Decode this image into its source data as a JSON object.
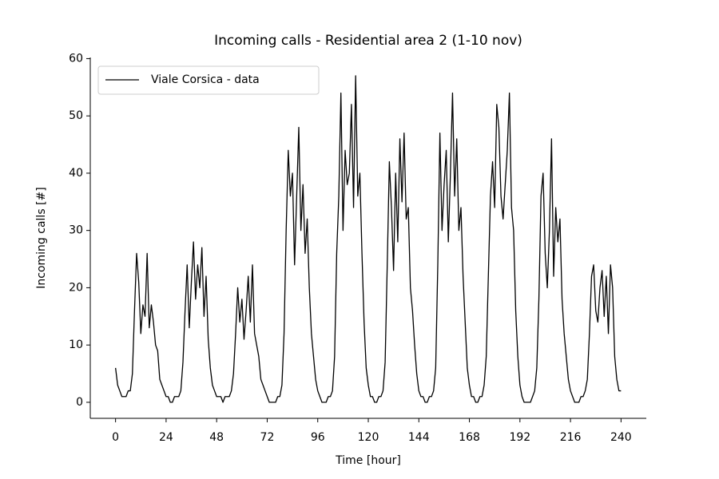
{
  "chart_data": {
    "type": "line",
    "title": "Incoming calls - Residential area 2 (1-10 nov)",
    "x_label": "Time [hour]",
    "y_label": "Incoming calls [#]",
    "legend": "upper left",
    "x": [
      0,
      1,
      2,
      3,
      4,
      5,
      6,
      7,
      8,
      9,
      10,
      11,
      12,
      13,
      14,
      15,
      16,
      17,
      18,
      19,
      20,
      21,
      22,
      23,
      24,
      25,
      26,
      27,
      28,
      29,
      30,
      31,
      32,
      33,
      34,
      35,
      36,
      37,
      38,
      39,
      40,
      41,
      42,
      43,
      44,
      45,
      46,
      47,
      48,
      49,
      50,
      51,
      52,
      53,
      54,
      55,
      56,
      57,
      58,
      59,
      60,
      61,
      62,
      63,
      64,
      65,
      66,
      67,
      68,
      69,
      70,
      71,
      72,
      73,
      74,
      75,
      76,
      77,
      78,
      79,
      80,
      81,
      82,
      83,
      84,
      85,
      86,
      87,
      88,
      89,
      90,
      91,
      92,
      93,
      94,
      95,
      96,
      97,
      98,
      99,
      100,
      101,
      102,
      103,
      104,
      105,
      106,
      107,
      108,
      109,
      110,
      111,
      112,
      113,
      114,
      115,
      116,
      117,
      118,
      119,
      120,
      121,
      122,
      123,
      124,
      125,
      126,
      127,
      128,
      129,
      130,
      131,
      132,
      133,
      134,
      135,
      136,
      137,
      138,
      139,
      140,
      141,
      142,
      143,
      144,
      145,
      146,
      147,
      148,
      149,
      150,
      151,
      152,
      153,
      154,
      155,
      156,
      157,
      158,
      159,
      160,
      161,
      162,
      163,
      164,
      165,
      166,
      167,
      168,
      169,
      170,
      171,
      172,
      173,
      174,
      175,
      176,
      177,
      178,
      179,
      180,
      181,
      182,
      183,
      184,
      185,
      186,
      187,
      188,
      189,
      190,
      191,
      192,
      193,
      194,
      195,
      196,
      197,
      198,
      199,
      200,
      201,
      202,
      203,
      204,
      205,
      206,
      207,
      208,
      209,
      210,
      211,
      212,
      213,
      214,
      215,
      216,
      217,
      218,
      219,
      220,
      221,
      222,
      223,
      224,
      225,
      226,
      227,
      228,
      229,
      230,
      231,
      232,
      233,
      234,
      235,
      236,
      237,
      238,
      239,
      240
    ],
    "series": [
      {
        "name": "Viale Corsica - data",
        "color": "#000000",
        "values": [
          6,
          3,
          2,
          1,
          1,
          1,
          2,
          2,
          5,
          16,
          26,
          21,
          12,
          17,
          15,
          26,
          13,
          17,
          14,
          10,
          9,
          4,
          3,
          2,
          1,
          1,
          0,
          0,
          1,
          1,
          1,
          2,
          7,
          16,
          24,
          13,
          21,
          28,
          18,
          24,
          20,
          27,
          15,
          22,
          11,
          6,
          3,
          2,
          1,
          1,
          1,
          0,
          1,
          1,
          1,
          2,
          5,
          12,
          20,
          14,
          18,
          11,
          16,
          22,
          14,
          24,
          12,
          10,
          8,
          4,
          3,
          2,
          1,
          0,
          0,
          0,
          0,
          1,
          1,
          3,
          12,
          30,
          44,
          36,
          40,
          24,
          36,
          48,
          30,
          38,
          26,
          32,
          20,
          12,
          8,
          4,
          2,
          1,
          0,
          0,
          0,
          1,
          1,
          2,
          8,
          26,
          36,
          54,
          30,
          44,
          38,
          40,
          52,
          34,
          57,
          36,
          40,
          26,
          14,
          6,
          3,
          1,
          1,
          0,
          0,
          1,
          1,
          2,
          7,
          24,
          42,
          34,
          23,
          40,
          28,
          46,
          35,
          47,
          32,
          34,
          20,
          16,
          10,
          5,
          2,
          1,
          1,
          0,
          0,
          1,
          1,
          2,
          6,
          24,
          47,
          30,
          38,
          44,
          28,
          40,
          54,
          36,
          46,
          30,
          34,
          22,
          14,
          6,
          3,
          1,
          1,
          0,
          0,
          1,
          1,
          3,
          8,
          22,
          36,
          42,
          34,
          52,
          48,
          36,
          32,
          38,
          44,
          54,
          34,
          30,
          16,
          8,
          3,
          1,
          0,
          0,
          0,
          0,
          1,
          2,
          6,
          18,
          36,
          40,
          26,
          20,
          30,
          46,
          22,
          34,
          28,
          32,
          18,
          12,
          8,
          4,
          2,
          1,
          0,
          0,
          0,
          1,
          1,
          2,
          4,
          12,
          22,
          24,
          16,
          14,
          20,
          23,
          15,
          22,
          12,
          24,
          20,
          8,
          4,
          2,
          2
        ]
      }
    ],
    "xlim": [
      -12,
      252
    ],
    "ylim": [
      -2.8,
      60.2
    ],
    "xticks": [
      0,
      24,
      48,
      72,
      96,
      120,
      144,
      168,
      192,
      216,
      240
    ],
    "yticks": [
      0,
      10,
      20,
      30,
      40,
      50,
      60
    ],
    "grid": false
  }
}
